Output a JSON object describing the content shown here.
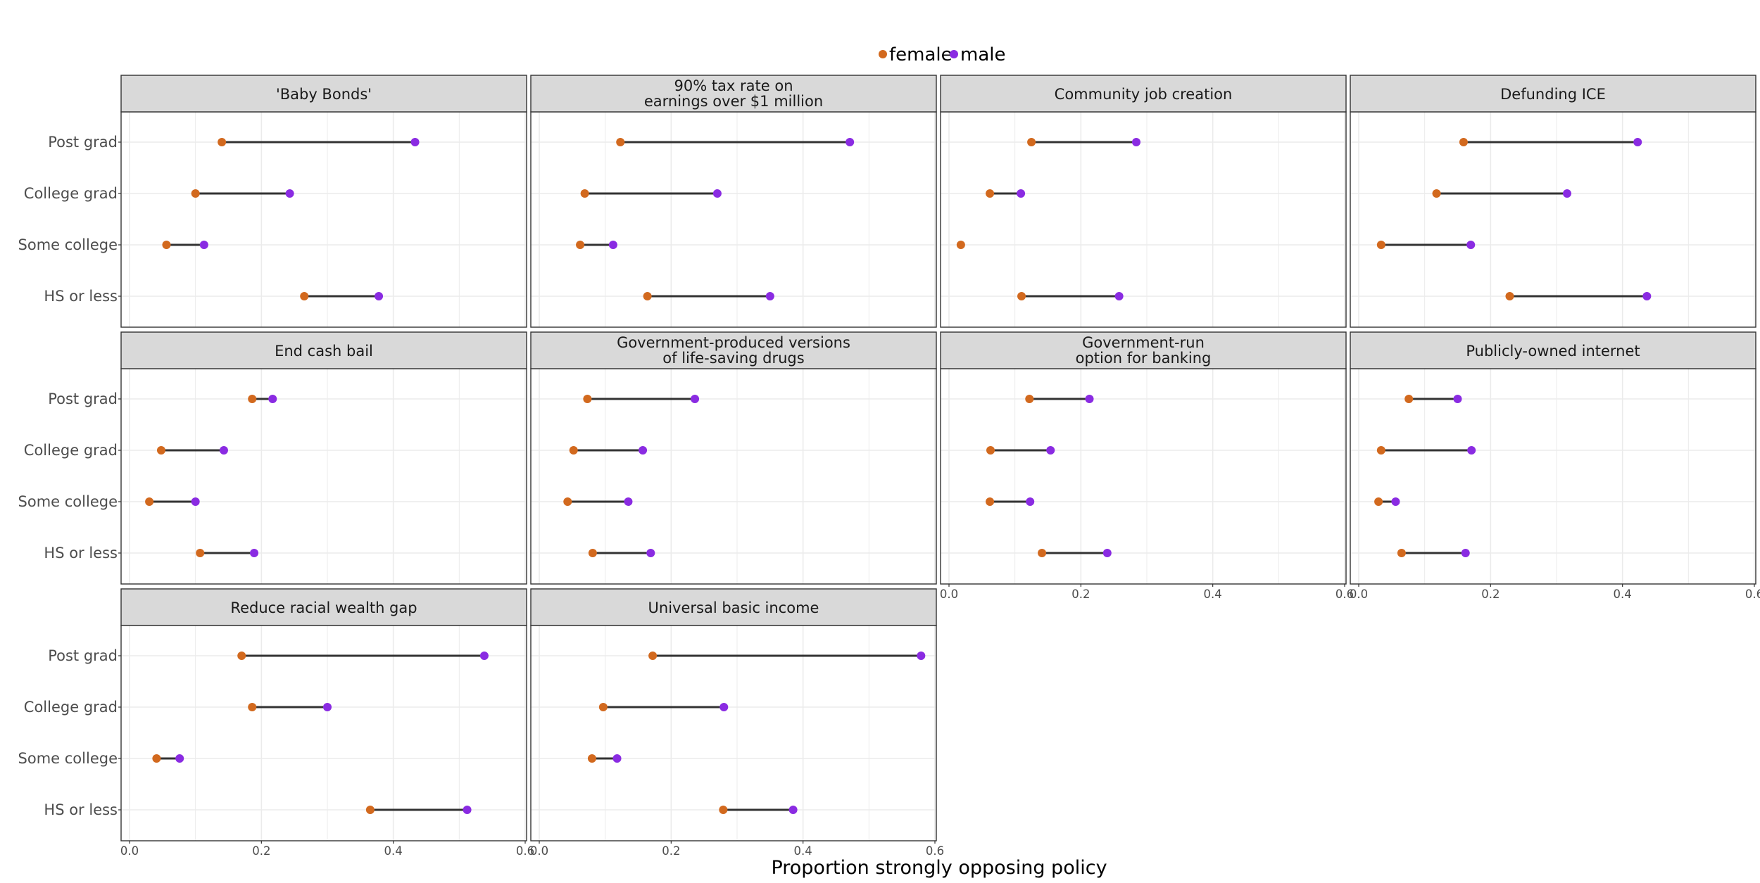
{
  "chart_data": {
    "type": "dumbbell",
    "xlabel": "Proportion strongly opposing policy",
    "ylabel": "",
    "xlim": [
      0,
      0.6
    ],
    "x_ticks": [
      0.0,
      0.2,
      0.4,
      0.6
    ],
    "x_tick_labels": [
      "0.0",
      "0.2",
      "0.4",
      "0.6"
    ],
    "categories": [
      "Post grad",
      "College grad",
      "Some college",
      "HS or less"
    ],
    "grid": true,
    "legend": {
      "placement": "top",
      "entries": [
        "female",
        "male"
      ]
    },
    "colors": {
      "female": "#D2691E",
      "male": "#8A2BE2",
      "segment": "#333333",
      "strip_fill": "#D9D9D9",
      "panel_border": "#333333",
      "grid": "#EBEBEB"
    },
    "layout": {
      "ncol": 4
    },
    "panels": [
      {
        "title": [
          "'Baby Bonds'"
        ],
        "female": [
          0.14,
          0.1,
          0.056,
          0.265
        ],
        "male": [
          0.433,
          0.243,
          0.113,
          0.378
        ]
      },
      {
        "title": [
          "90% tax rate on",
          "earnings over $1 million"
        ],
        "female": [
          0.123,
          0.069,
          0.062,
          0.164
        ],
        "male": [
          0.471,
          0.27,
          0.112,
          0.35
        ]
      },
      {
        "title": [
          "Community job creation"
        ],
        "female": [
          0.125,
          0.062,
          0.018,
          0.11
        ],
        "male": [
          0.284,
          0.109,
          null,
          0.258
        ]
      },
      {
        "title": [
          "Defunding ICE"
        ],
        "female": [
          0.159,
          0.118,
          0.034,
          0.229
        ],
        "male": [
          0.423,
          0.316,
          0.17,
          0.437
        ]
      },
      {
        "title": [
          "End cash bail"
        ],
        "female": [
          0.186,
          0.048,
          0.03,
          0.107
        ],
        "male": [
          0.217,
          0.143,
          0.1,
          0.189
        ]
      },
      {
        "title": [
          "Government-produced versions",
          "of life-saving drugs"
        ],
        "female": [
          0.073,
          0.052,
          0.043,
          0.081
        ],
        "male": [
          0.236,
          0.157,
          0.135,
          0.169
        ]
      },
      {
        "title": [
          "Government-run",
          "option for banking"
        ],
        "female": [
          0.122,
          0.063,
          0.062,
          0.141
        ],
        "male": [
          0.213,
          0.154,
          0.123,
          0.24
        ]
      },
      {
        "title": [
          "Publicly-owned internet"
        ],
        "female": [
          0.076,
          0.034,
          0.03,
          0.065
        ],
        "male": [
          0.15,
          0.171,
          0.056,
          0.162
        ]
      },
      {
        "title": [
          "Reduce racial wealth gap"
        ],
        "female": [
          0.17,
          0.186,
          0.041,
          0.365
        ],
        "male": [
          0.538,
          0.3,
          0.076,
          0.512
        ]
      },
      {
        "title": [
          "Universal basic income"
        ],
        "female": [
          0.172,
          0.097,
          0.08,
          0.279
        ],
        "male": [
          0.579,
          0.28,
          0.118,
          0.385
        ]
      }
    ]
  }
}
